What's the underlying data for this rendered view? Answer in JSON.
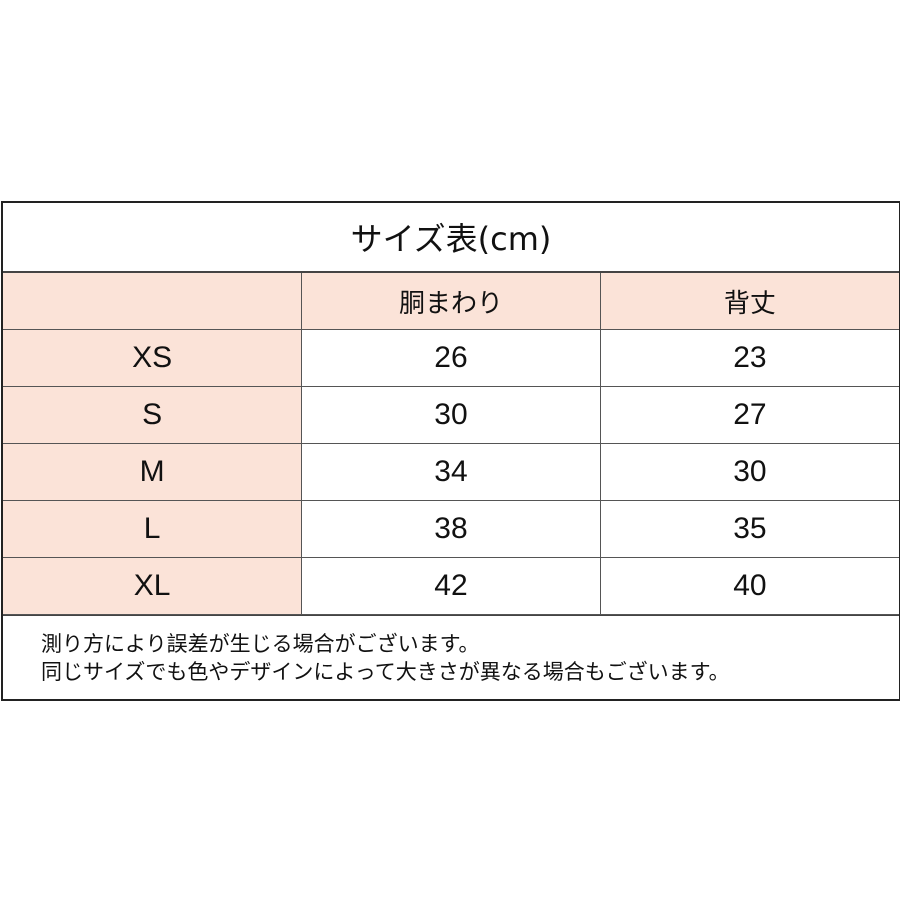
{
  "title": "サイズ表(cm)",
  "columns": [
    "",
    "胴まわり",
    "背丈"
  ],
  "rows": [
    {
      "size": "XS",
      "waist": "26",
      "length": "23"
    },
    {
      "size": "S",
      "waist": "30",
      "length": "27"
    },
    {
      "size": "M",
      "waist": "34",
      "length": "30"
    },
    {
      "size": "L",
      "waist": "38",
      "length": "35"
    },
    {
      "size": "XL",
      "waist": "42",
      "length": "40"
    }
  ],
  "notes": [
    "測り方により誤差が生じる場合がございます。",
    "同じサイズでも色やデザインによって大きさが異なる場合もございます。"
  ],
  "colors": {
    "header_bg": "#fbe3d8",
    "border": "#222222"
  }
}
